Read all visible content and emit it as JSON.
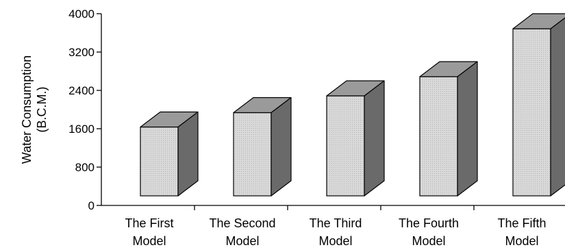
{
  "chart_data": {
    "type": "bar",
    "categories": [
      [
        "The First",
        "Model"
      ],
      [
        "The Second",
        "Model"
      ],
      [
        "The Third",
        "Model"
      ],
      [
        "The Fourth",
        "Model"
      ],
      [
        "The Fifth",
        "Model"
      ]
    ],
    "values": [
      1950,
      2250,
      2600,
      3000,
      4000
    ],
    "ylabel": [
      "Water Consumption",
      "(B.C.M.)"
    ],
    "ylim": [
      0,
      4000
    ],
    "yticks": [
      0,
      800,
      1600,
      2400,
      3200,
      4000
    ],
    "grid": false,
    "style": "3d-column",
    "colors": {
      "front": "#d6d6d6",
      "top": "#9a9a9a",
      "side": "#6a6a6a",
      "outline": "#000000",
      "axis": "#000000"
    }
  }
}
